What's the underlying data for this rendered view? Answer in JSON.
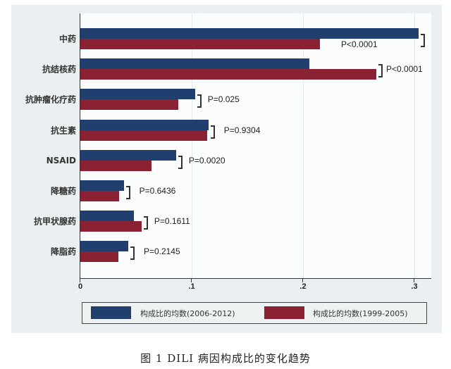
{
  "chart_data": {
    "type": "bar",
    "orientation": "horizontal",
    "title": "",
    "caption": "图 1   DILI 病因构成比的变化趋势",
    "xlabel": "",
    "ylabel": "",
    "xlim": [
      0,
      0.31
    ],
    "x_ticks": [
      "0",
      ".1",
      ".2",
      ".3"
    ],
    "x_tick_values": [
      0,
      0.1,
      0.2,
      0.3
    ],
    "grid": true,
    "legend_position": "bottom",
    "categories": [
      "中药",
      "抗结核药",
      "抗肿瘤化疗药",
      "抗生素",
      "NSAID",
      "降糖药",
      "抗甲状腺药",
      "降脂药"
    ],
    "series": [
      {
        "name": "构成比的均数(2006-2012)",
        "color": "#213f6e",
        "values": [
          0.304,
          0.206,
          0.103,
          0.115,
          0.086,
          0.039,
          0.048,
          0.043
        ]
      },
      {
        "name": "构成比的均数(1999-2005)",
        "color": "#8a2234",
        "values": [
          0.215,
          0.266,
          0.088,
          0.114,
          0.064,
          0.035,
          0.055,
          0.034
        ]
      }
    ],
    "annotations": [
      "P<0.0001",
      "P<0.0001",
      "P=0.025",
      "P=0.9304",
      "P=0.0020",
      "P=0.6436",
      "P=0.1611",
      "P=0.2145"
    ]
  },
  "legend": {
    "items": [
      {
        "label": "构成比的均数(2006-2012)",
        "color": "#213f6e"
      },
      {
        "label": "构成比的均数(1999-2005)",
        "color": "#8a2234"
      }
    ]
  },
  "caption": "图 1   DILI 病因构成比的变化趋势"
}
